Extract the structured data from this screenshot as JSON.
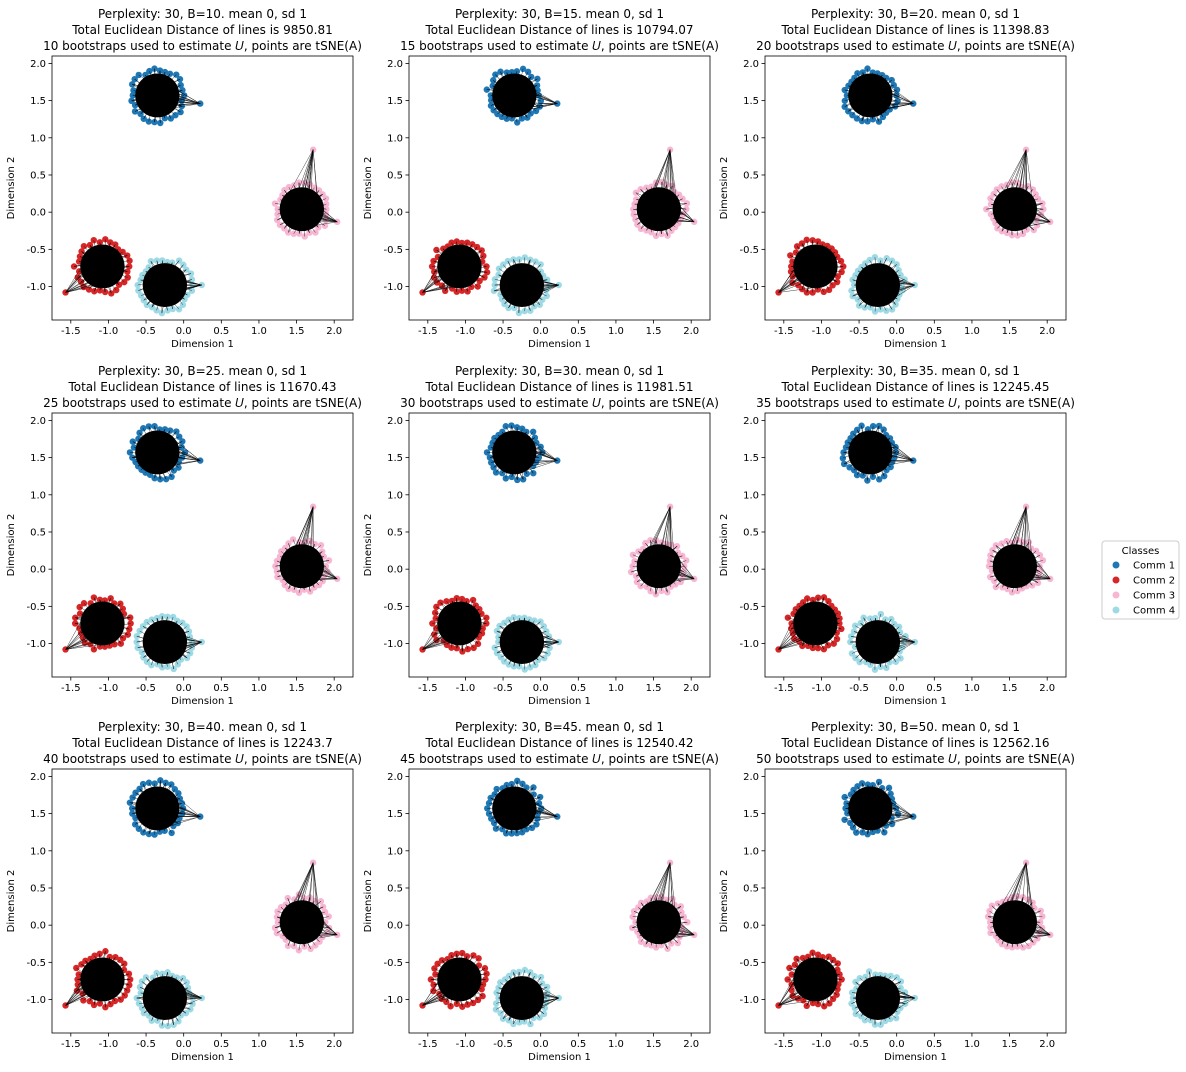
{
  "chart_data": {
    "type": "scatter",
    "grid": false,
    "xlabel": "Dimension 1",
    "ylabel": "Dimension 2",
    "xlim": [
      -1.75,
      2.25
    ],
    "ylim": [
      -1.45,
      2.1
    ],
    "xticks": [
      "-1.5",
      "-1.0",
      "-0.5",
      "0.0",
      "0.5",
      "1.0",
      "1.5",
      "2.0"
    ],
    "xtick_values": [
      -1.5,
      -1.0,
      -0.5,
      0.0,
      0.5,
      1.0,
      1.5,
      2.0
    ],
    "yticks": [
      "2.0",
      "1.5",
      "1.0",
      "0.5",
      "0.0",
      "-0.5",
      "-1.0"
    ],
    "ytick_values": [
      2.0,
      1.5,
      1.0,
      0.5,
      0.0,
      -0.5,
      -1.0
    ],
    "clusters": [
      {
        "name": "Comm 1",
        "color": "#1f77b4",
        "center": [
          -0.35,
          1.57
        ],
        "radius": 0.36,
        "outlier": [
          0.22,
          1.46
        ]
      },
      {
        "name": "Comm 2",
        "color": "#d62728",
        "center": [
          -1.08,
          -0.73
        ],
        "radius": 0.36,
        "outlier": [
          -1.57,
          -1.08
        ]
      },
      {
        "name": "Comm 3",
        "color": "#f7b6d2",
        "center": [
          1.57,
          0.04
        ],
        "radius": 0.36,
        "outliers": [
          [
            1.72,
            0.84
          ],
          [
            2.04,
            -0.13
          ]
        ]
      },
      {
        "name": "Comm 4",
        "color": "#9edae5",
        "center": [
          -0.25,
          -0.98
        ],
        "radius": 0.36,
        "outlier": [
          0.24,
          -0.98
        ]
      }
    ],
    "legend": {
      "title": "Classes",
      "placement": "right",
      "entries": [
        {
          "label": "Comm 1",
          "color": "#1f77b4"
        },
        {
          "label": "Comm 2",
          "color": "#d62728"
        },
        {
          "label": "Comm 3",
          "color": "#f7b6d2"
        },
        {
          "label": "Comm 4",
          "color": "#9edae5"
        }
      ]
    },
    "panels": [
      {
        "title1": "Perplexity: 30, B=10. mean 0, sd 1",
        "title2": "Total Euclidean Distance of lines is 9850.81",
        "title3": "10 bootstraps used to estimate 𝑈, points are tSNE(A)",
        "B": 10,
        "total_distance": 9850.81
      },
      {
        "title1": "Perplexity: 30, B=15. mean 0, sd 1",
        "title2": "Total Euclidean Distance of lines is 10794.07",
        "title3": "15 bootstraps used to estimate 𝑈, points are tSNE(A)",
        "B": 15,
        "total_distance": 10794.07
      },
      {
        "title1": "Perplexity: 30, B=20. mean 0, sd 1",
        "title2": "Total Euclidean Distance of lines is 11398.83",
        "title3": "20 bootstraps used to estimate 𝑈, points are tSNE(A)",
        "B": 20,
        "total_distance": 11398.83
      },
      {
        "title1": "Perplexity: 30, B=25. mean 0, sd 1",
        "title2": "Total Euclidean Distance of lines is 11670.43",
        "title3": "25 bootstraps used to estimate 𝑈, points are tSNE(A)",
        "B": 25,
        "total_distance": 11670.43
      },
      {
        "title1": "Perplexity: 30, B=30. mean 0, sd 1",
        "title2": "Total Euclidean Distance of lines is 11981.51",
        "title3": "30 bootstraps used to estimate 𝑈, points are tSNE(A)",
        "B": 30,
        "total_distance": 11981.51
      },
      {
        "title1": "Perplexity: 30, B=35. mean 0, sd 1",
        "title2": "Total Euclidean Distance of lines is 12245.45",
        "title3": "35 bootstraps used to estimate 𝑈, points are tSNE(A)",
        "B": 35,
        "total_distance": 12245.45
      },
      {
        "title1": "Perplexity: 30, B=40. mean 0, sd 1",
        "title2": "Total Euclidean Distance of lines is 12243.7",
        "title3": "40 bootstraps used to estimate 𝑈, points are tSNE(A)",
        "B": 40,
        "total_distance": 12243.7
      },
      {
        "title1": "Perplexity: 30, B=45. mean 0, sd 1",
        "title2": "Total Euclidean Distance of lines is 12540.42",
        "title3": "45 bootstraps used to estimate 𝑈, points are tSNE(A)",
        "B": 45,
        "total_distance": 12540.42
      },
      {
        "title1": "Perplexity: 30, B=50. mean 0, sd 1",
        "title2": "Total Euclidean Distance of lines is 12562.16",
        "title3": "50 bootstraps used to estimate 𝑈, points are tSNE(A)",
        "B": 50,
        "total_distance": 12562.16
      }
    ]
  }
}
